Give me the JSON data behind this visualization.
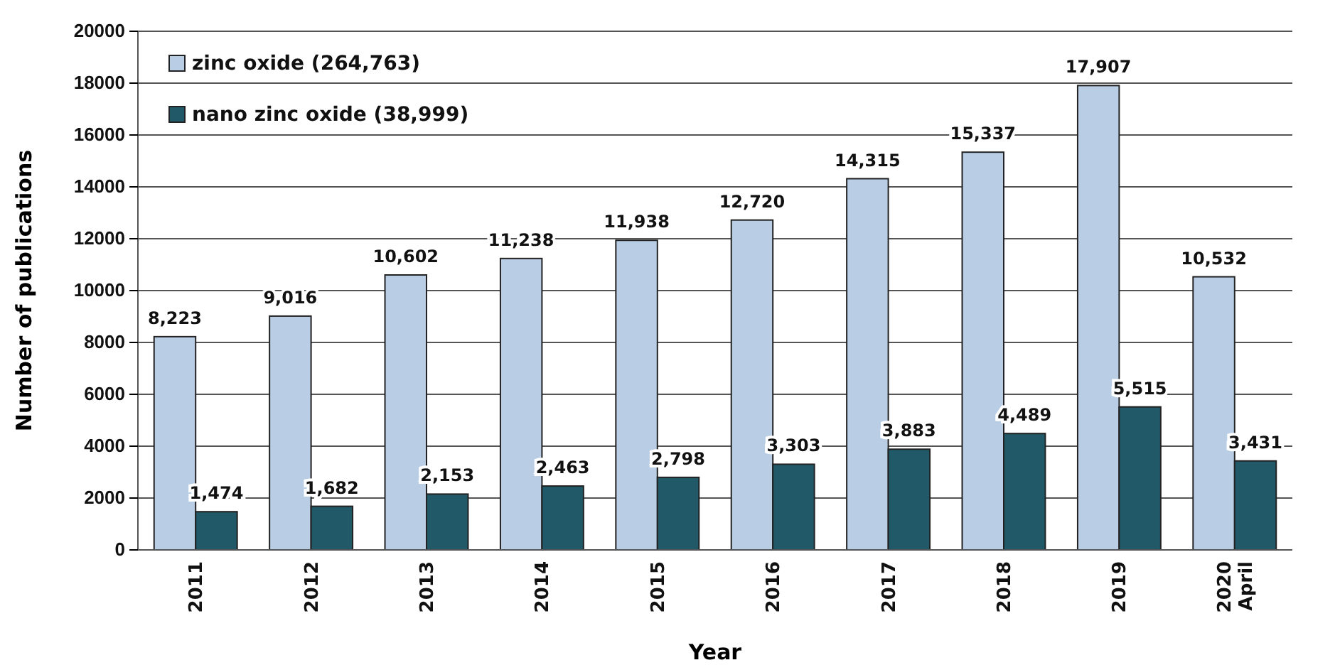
{
  "chart_data": {
    "type": "bar",
    "xlabel": "Year",
    "ylabel": "Number of publications",
    "categories": [
      "2011",
      "2012",
      "2013",
      "2014",
      "2015",
      "2016",
      "2017",
      "2018",
      "2019",
      "2020\nApril"
    ],
    "series": [
      {
        "name": "zinc oxide (264,763)",
        "color": "#b9cde5",
        "values": [
          8223,
          9016,
          10602,
          11238,
          11938,
          12720,
          14315,
          15337,
          17907,
          10532
        ],
        "value_labels": [
          "8,223",
          "9,016",
          "10,602",
          "11,238",
          "11,938",
          "12,720",
          "14,315",
          "15,337",
          "17,907",
          "10,532"
        ]
      },
      {
        "name": "nano zinc oxide (38,999)",
        "color": "#215968",
        "values": [
          1474,
          1682,
          2153,
          2463,
          2798,
          3303,
          3883,
          4489,
          5515,
          3431
        ],
        "value_labels": [
          "1,474",
          "1,682",
          "2,153",
          "2,463",
          "2,798",
          "3,303",
          "3,883",
          "4,489",
          "5,515",
          "3,431"
        ]
      }
    ],
    "ylim": [
      0,
      20000
    ],
    "yticks": [
      0,
      2000,
      4000,
      6000,
      8000,
      10000,
      12000,
      14000,
      16000,
      18000,
      20000
    ],
    "grid": "y",
    "legend": "top left"
  }
}
